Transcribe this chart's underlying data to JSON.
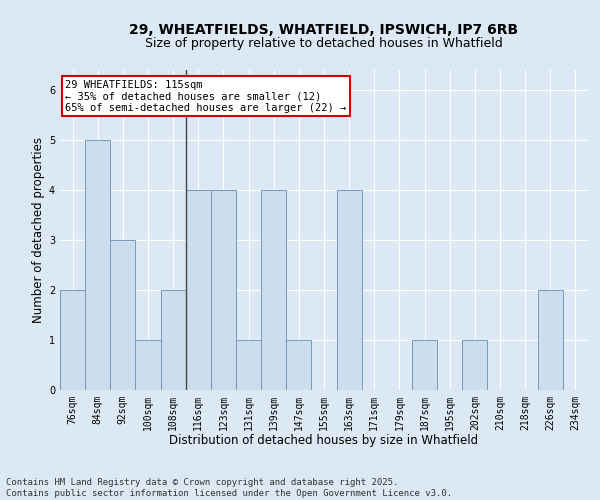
{
  "title_line1": "29, WHEATFIELDS, WHATFIELD, IPSWICH, IP7 6RB",
  "title_line2": "Size of property relative to detached houses in Whatfield",
  "xlabel": "Distribution of detached houses by size in Whatfield",
  "ylabel": "Number of detached properties",
  "categories": [
    "76sqm",
    "84sqm",
    "92sqm",
    "100sqm",
    "108sqm",
    "116sqm",
    "123sqm",
    "131sqm",
    "139sqm",
    "147sqm",
    "155sqm",
    "163sqm",
    "171sqm",
    "179sqm",
    "187sqm",
    "195sqm",
    "202sqm",
    "210sqm",
    "218sqm",
    "226sqm",
    "234sqm"
  ],
  "values": [
    2,
    5,
    3,
    1,
    2,
    4,
    4,
    1,
    4,
    1,
    0,
    4,
    0,
    0,
    1,
    0,
    1,
    0,
    0,
    2,
    0
  ],
  "bar_color": "#ccdded",
  "bar_edge_color": "#7799bb",
  "highlight_line_color": "#444444",
  "annotation_text": "29 WHEATFIELDS: 115sqm\n← 35% of detached houses are smaller (12)\n65% of semi-detached houses are larger (22) →",
  "annotation_box_color": "#ffffff",
  "annotation_box_edge": "#cc0000",
  "ylim": [
    0,
    6.4
  ],
  "yticks": [
    0,
    1,
    2,
    3,
    4,
    5,
    6
  ],
  "footer_line1": "Contains HM Land Registry data © Crown copyright and database right 2025.",
  "footer_line2": "Contains public sector information licensed under the Open Government Licence v3.0.",
  "bg_color": "#dce8f4",
  "plot_bg_color": "#dce8f4",
  "title_fontsize": 10,
  "subtitle_fontsize": 9,
  "axis_label_fontsize": 8.5,
  "tick_fontsize": 7,
  "footer_fontsize": 6.5,
  "annotation_fontsize": 7.5
}
